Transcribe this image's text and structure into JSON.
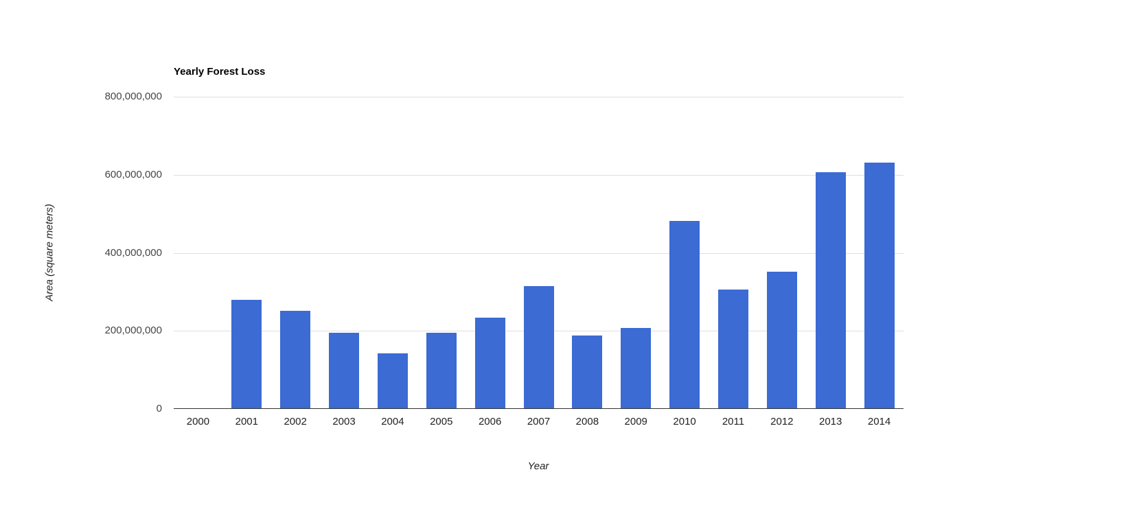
{
  "chart_data": {
    "type": "bar",
    "title": "Yearly Forest Loss",
    "xlabel": "Year",
    "ylabel": "Area (square meters)",
    "categories": [
      "2000",
      "2001",
      "2002",
      "2003",
      "2004",
      "2005",
      "2006",
      "2007",
      "2008",
      "2009",
      "2010",
      "2011",
      "2012",
      "2013",
      "2014"
    ],
    "values": [
      0,
      280000000,
      251000000,
      196000000,
      143000000,
      196000000,
      233000000,
      314000000,
      188000000,
      207000000,
      482000000,
      306000000,
      352000000,
      607000000,
      631000000
    ],
    "ylim": [
      0,
      800000000
    ],
    "yticks": [
      0,
      200000000,
      400000000,
      600000000,
      800000000
    ],
    "grid": true,
    "legend_position": "none",
    "bar_color": "#3b6bd3",
    "gridline_color": "#dedede",
    "baseline_color": "#333333"
  }
}
